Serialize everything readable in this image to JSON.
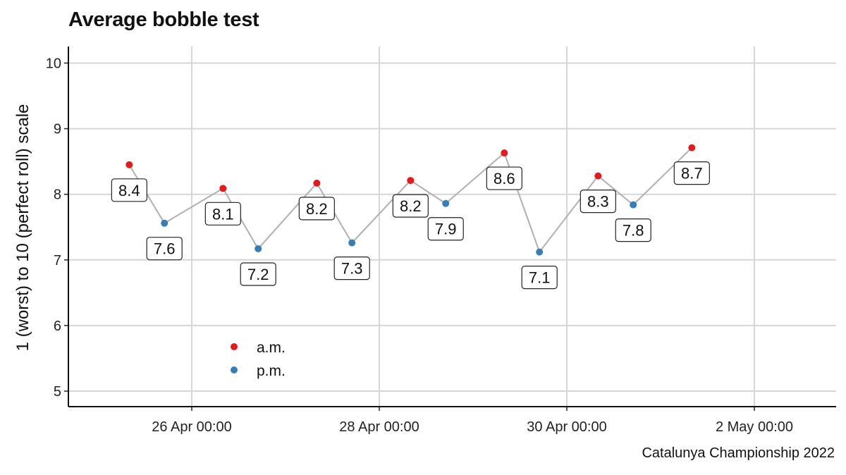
{
  "chart_data": {
    "type": "line",
    "title": "Average bobble test",
    "caption": "Catalunya Championship 2022",
    "ylabel": "1 (worst) to 10 (perfect roll) scale",
    "xlabel": "",
    "ylim": [
      5,
      10
    ],
    "y_ticks": [
      5,
      6,
      7,
      8,
      9,
      10
    ],
    "x_ticks": [
      "26 Apr 00:00",
      "28 Apr 00:00",
      "30 Apr 00:00",
      "2 May 00:00"
    ],
    "grid": true,
    "legend_position": "inside bottom-left",
    "line_color": "#b0b0b0",
    "series": [
      {
        "name": "a.m.",
        "color": "#e41a1c"
      },
      {
        "name": "p.m.",
        "color": "#377eb8"
      }
    ],
    "points": [
      {
        "x": "25 Apr 08:00",
        "y": 8.45,
        "label": "8.4",
        "series": "a.m."
      },
      {
        "x": "25 Apr 17:00",
        "y": 7.56,
        "label": "7.6",
        "series": "p.m."
      },
      {
        "x": "26 Apr 08:00",
        "y": 8.09,
        "label": "8.1",
        "series": "a.m."
      },
      {
        "x": "26 Apr 17:00",
        "y": 7.17,
        "label": "7.2",
        "series": "p.m."
      },
      {
        "x": "27 Apr 08:00",
        "y": 8.17,
        "label": "8.2",
        "series": "a.m."
      },
      {
        "x": "27 Apr 17:00",
        "y": 7.26,
        "label": "7.3",
        "series": "p.m."
      },
      {
        "x": "28 Apr 08:00",
        "y": 8.21,
        "label": "8.2",
        "series": "a.m."
      },
      {
        "x": "28 Apr 17:00",
        "y": 7.86,
        "label": "7.9",
        "series": "p.m."
      },
      {
        "x": "29 Apr 08:00",
        "y": 8.63,
        "label": "8.6",
        "series": "a.m."
      },
      {
        "x": "29 Apr 17:00",
        "y": 7.12,
        "label": "7.1",
        "series": "p.m."
      },
      {
        "x": "30 Apr 08:00",
        "y": 8.28,
        "label": "8.3",
        "series": "a.m."
      },
      {
        "x": "30 Apr 17:00",
        "y": 7.84,
        "label": "7.8",
        "series": "p.m."
      },
      {
        "x": "1 May 08:00",
        "y": 8.71,
        "label": "8.7",
        "series": "a.m."
      }
    ]
  }
}
